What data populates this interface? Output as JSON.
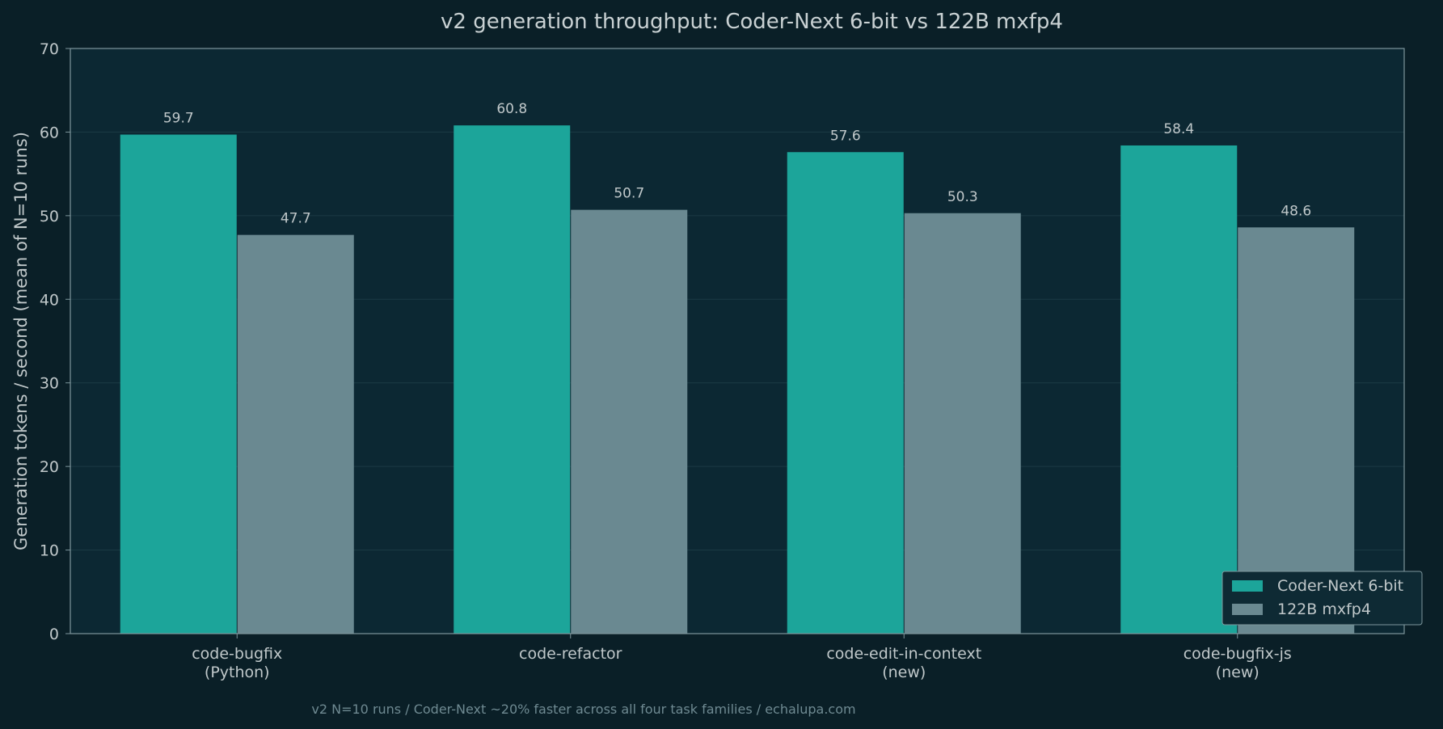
{
  "chart_data": {
    "type": "bar",
    "title": "v2 generation throughput: Coder-Next 6-bit vs 122B mxfp4",
    "xlabel": "",
    "ylabel": "Generation tokens / second (mean of N=10 runs)",
    "ylim": [
      0,
      70
    ],
    "yticks": [
      0,
      10,
      20,
      30,
      40,
      50,
      60,
      70
    ],
    "grid": true,
    "legend_position": "lower-right",
    "categories": [
      [
        "code-bugfix",
        "(Python)"
      ],
      [
        "code-refactor"
      ],
      [
        "code-edit-in-context",
        "(new)"
      ],
      [
        "code-bugfix-js",
        "(new)"
      ]
    ],
    "series": [
      {
        "name": "Coder-Next 6-bit",
        "color": "#1ca59a",
        "values": [
          59.7,
          60.8,
          57.6,
          58.4
        ]
      },
      {
        "name": "122B mxfp4",
        "color": "#6a8991",
        "values": [
          47.7,
          50.7,
          50.3,
          48.6
        ]
      }
    ]
  },
  "footnote": "v2 N=10 runs / Coder-Next ~20% faster across all four task families  /  echalupa.com",
  "colors": {
    "background": "#0a1f27",
    "plot_background": "#0c2833",
    "grid": "#1b3a45",
    "axis": "#7e969c"
  }
}
